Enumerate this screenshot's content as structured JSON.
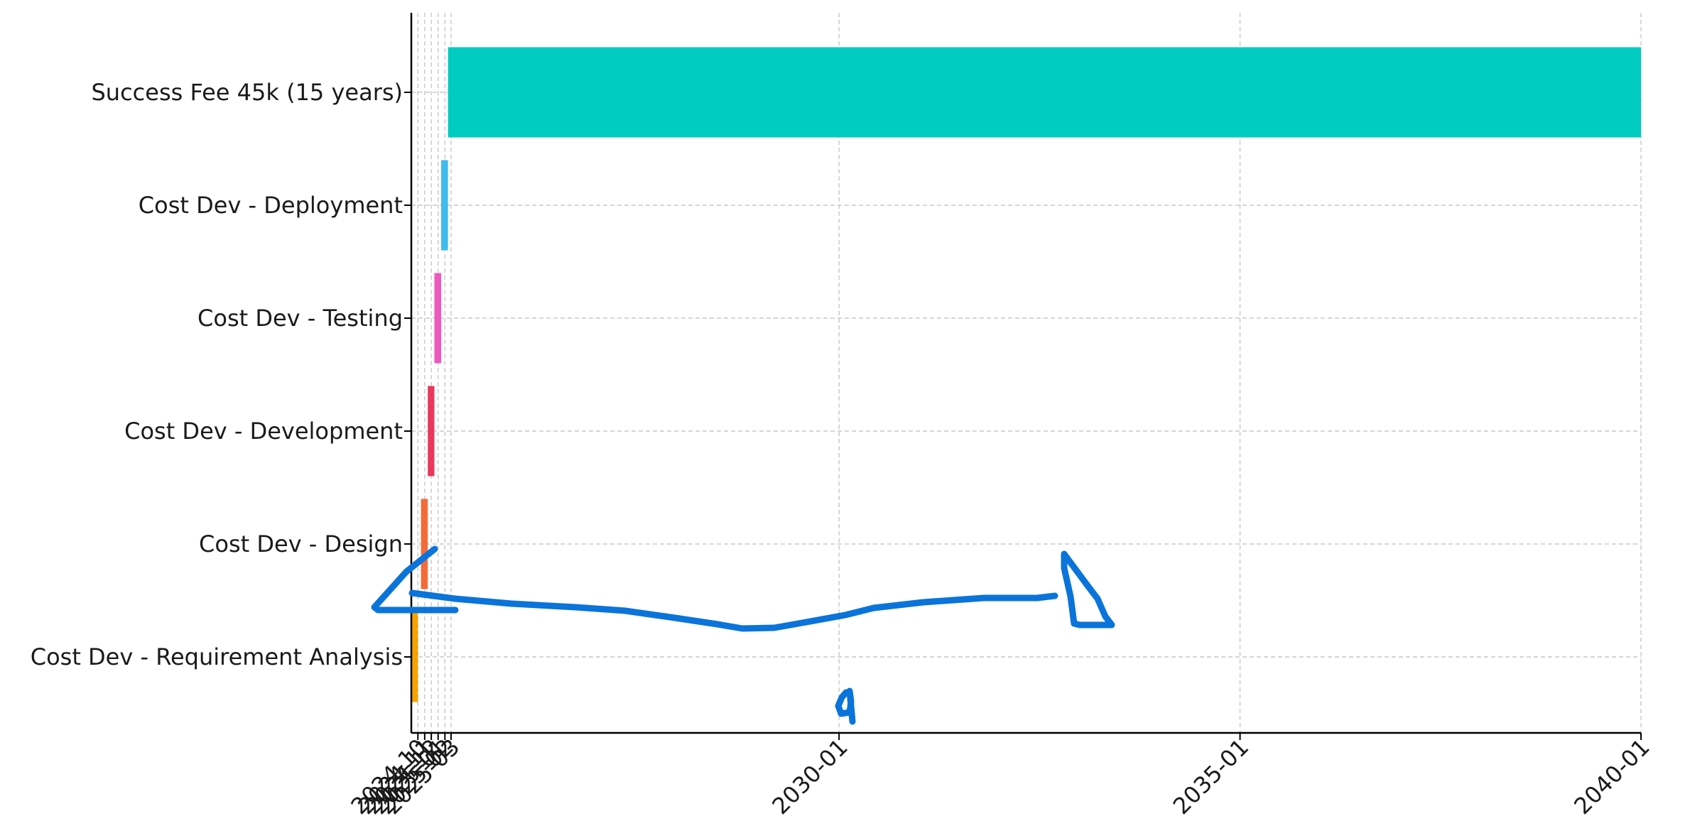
{
  "chart_data": {
    "type": "bar",
    "orientation": "horizontal-gantt",
    "title": "",
    "xlabel": "",
    "ylabel": "",
    "grid": true,
    "xlim": [
      "2024-09-01",
      "2040-01-01"
    ],
    "x_ticks": [
      {
        "date": "2024-10-01",
        "label": "2024-10"
      },
      {
        "date": "2024-11-01",
        "label": "2024-11"
      },
      {
        "date": "2024-12-01",
        "label": "2024-12"
      },
      {
        "date": "2025-01-01",
        "label": "2025-01"
      },
      {
        "date": "2025-02-01",
        "label": "2025-02"
      },
      {
        "date": "2025-03-01",
        "label": "2025-03"
      },
      {
        "date": "2030-01-01",
        "label": "2030-01"
      },
      {
        "date": "2035-01-01",
        "label": "2035-01"
      },
      {
        "date": "2040-01-01",
        "label": "2040-01"
      }
    ],
    "tasks": [
      {
        "name": "Cost Dev - Requirement Analysis",
        "start": "2024-09-01",
        "end": "2024-10-01",
        "color": "#F5A300"
      },
      {
        "name": "Cost Dev - Design",
        "start": "2024-10-15",
        "end": "2024-11-15",
        "color": "#F26B38"
      },
      {
        "name": "Cost Dev - Development",
        "start": "2024-11-15",
        "end": "2024-12-15",
        "color": "#E8385B"
      },
      {
        "name": "Cost Dev - Testing",
        "start": "2024-12-15",
        "end": "2025-01-15",
        "color": "#EC5ABF"
      },
      {
        "name": "Cost Dev - Deployment",
        "start": "2025-01-15",
        "end": "2025-02-15",
        "color": "#3FBCEB"
      },
      {
        "name": "Success Fee 45k (15 years)",
        "start": "2025-02-15",
        "end": "2040-01-01",
        "color": "#00CBC0"
      }
    ],
    "annotation_color": "#0A74DA"
  }
}
